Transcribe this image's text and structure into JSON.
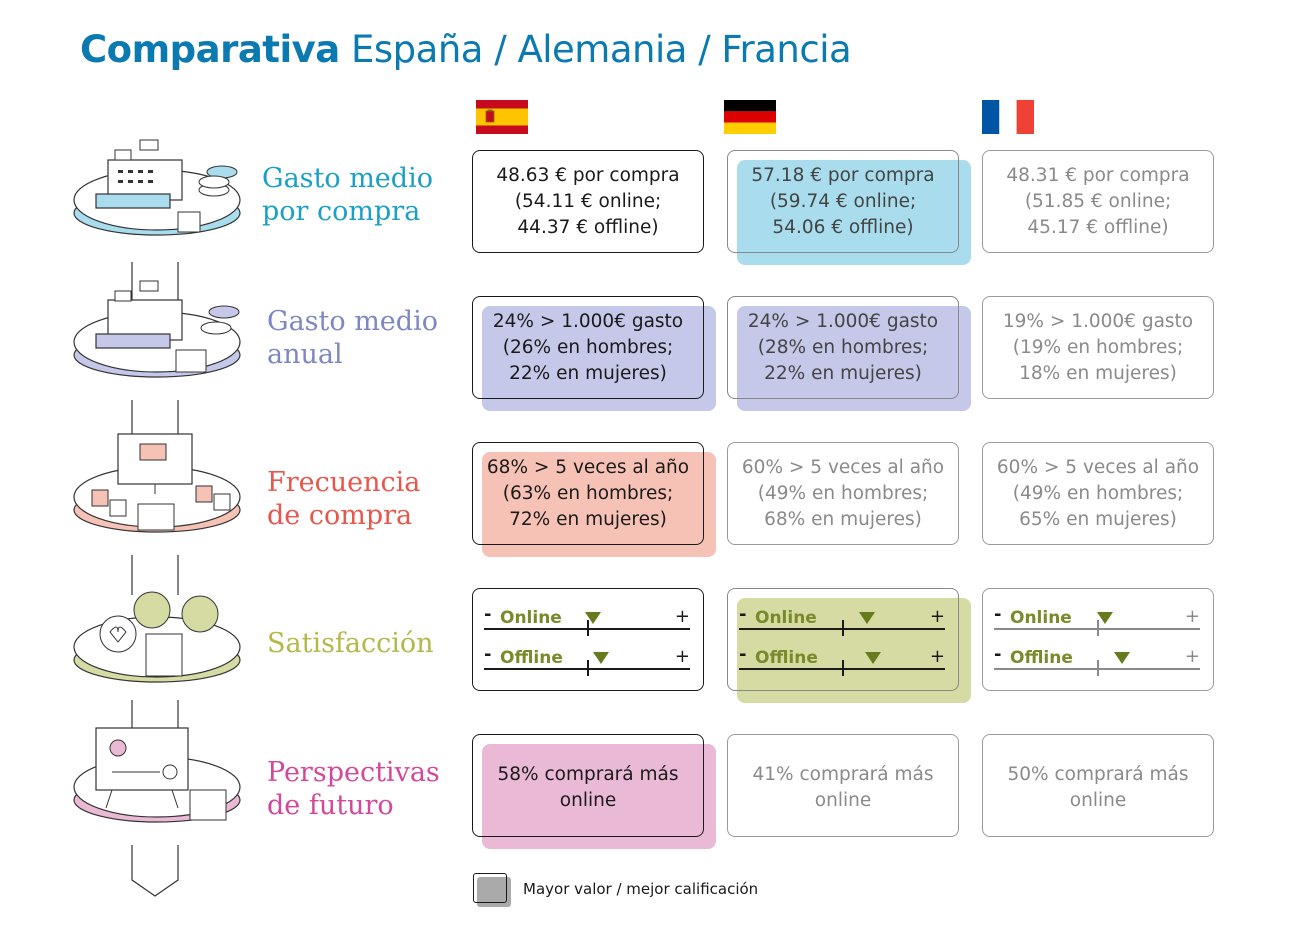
{
  "title": {
    "bold": "Comparativa",
    "rest": "España / Alemania / Francia"
  },
  "countries": [
    {
      "name": "España",
      "flag_icon": "spain-flag-icon"
    },
    {
      "name": "Alemania",
      "flag_icon": "germany-flag-icon"
    },
    {
      "name": "Francia",
      "flag_icon": "france-flag-icon"
    }
  ],
  "rows": [
    {
      "label_1": "Gasto medio",
      "label_2": "por compra",
      "color": "#1aa0c8",
      "highlight_color": "#a9dcec",
      "cells": [
        {
          "line_1": "48.63 € por compra",
          "line_2": "(54.11 € online;",
          "line_3": "44.37 € offline)",
          "best": false
        },
        {
          "line_1": "57.18 € por compra",
          "line_2": "(59.74 € online;",
          "line_3": "54.06 € offline)",
          "best": true
        },
        {
          "line_1": "48.31 € por compra",
          "line_2": "(51.85 € online;",
          "line_3": "45.17 € offline)",
          "best": false
        }
      ]
    },
    {
      "label_1": "Gasto medio",
      "label_2": "anual",
      "color": "#7c88c4",
      "highlight_color": "#c5c8e8",
      "cells": [
        {
          "line_1": "24% > 1.000€ gasto",
          "line_2": "(26% en hombres;",
          "line_3": "22% en mujeres)",
          "best": true
        },
        {
          "line_1": "24% > 1.000€ gasto",
          "line_2": "(28% en hombres;",
          "line_3": "22% en mujeres)",
          "best": true
        },
        {
          "line_1": "19% > 1.000€ gasto",
          "line_2": "(19% en hombres;",
          "line_3": "18% en mujeres)",
          "best": false
        }
      ]
    },
    {
      "label_1": "Frecuencia",
      "label_2": "de compra",
      "color": "#e8564c",
      "highlight_color": "#f6c2b6",
      "cells": [
        {
          "line_1": "68% > 5 veces al año",
          "line_2": "(63% en hombres;",
          "line_3": "72% en mujeres)",
          "best": true
        },
        {
          "line_1": "60% > 5 veces al año",
          "line_2": "(49% en hombres;",
          "line_3": "68% en mujeres)",
          "best": false
        },
        {
          "line_1": "60% > 5 veces al año",
          "line_2": "(49% en hombres;",
          "line_3": "65% en mujeres)",
          "best": false
        }
      ]
    },
    {
      "label_1": "Satisfacción",
      "label_2": "",
      "color": "#b3b848",
      "highlight_color": "#d6dba4",
      "online_label": "Online",
      "offline_label": "Offline",
      "minus": "-",
      "plus": "+",
      "cells": [
        {
          "online_level": 0.53,
          "offline_level": 0.57,
          "best": false
        },
        {
          "online_level": 0.62,
          "offline_level": 0.65,
          "best": true
        },
        {
          "online_level": 0.54,
          "offline_level": 0.62,
          "best": false
        }
      ]
    },
    {
      "label_1": "Perspectivas",
      "label_2": "de futuro",
      "color": "#d3489a",
      "highlight_color": "#eab9d6",
      "cells": [
        {
          "line_1": "58% comprará más",
          "line_2": "online",
          "best": true
        },
        {
          "line_1": "41% comprará más",
          "line_2": "online",
          "best": false
        },
        {
          "line_1": "50% comprará más",
          "line_2": "online",
          "best": false
        }
      ]
    }
  ],
  "legend": {
    "text": "Mayor valor / mejor calificación",
    "swatch_color": "#aaaaaa"
  }
}
